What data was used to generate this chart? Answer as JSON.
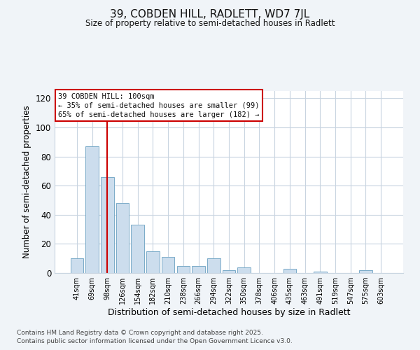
{
  "title": "39, COBDEN HILL, RADLETT, WD7 7JL",
  "subtitle": "Size of property relative to semi-detached houses in Radlett",
  "xlabel": "Distribution of semi-detached houses by size in Radlett",
  "ylabel": "Number of semi-detached properties",
  "bar_labels": [
    "41sqm",
    "69sqm",
    "98sqm",
    "126sqm",
    "154sqm",
    "182sqm",
    "210sqm",
    "238sqm",
    "266sqm",
    "294sqm",
    "322sqm",
    "350sqm",
    "378sqm",
    "406sqm",
    "435sqm",
    "463sqm",
    "491sqm",
    "519sqm",
    "547sqm",
    "575sqm",
    "603sqm"
  ],
  "bar_values": [
    10,
    87,
    66,
    48,
    33,
    15,
    11,
    5,
    5,
    10,
    2,
    4,
    0,
    0,
    3,
    0,
    1,
    0,
    0,
    2,
    0
  ],
  "bar_color": "#ccdded",
  "bar_edge_color": "#7aaac8",
  "vline_x": 2,
  "vline_color": "#cc0000",
  "ylim": [
    0,
    125
  ],
  "yticks": [
    0,
    20,
    40,
    60,
    80,
    100,
    120
  ],
  "annotation_title": "39 COBDEN HILL: 100sqm",
  "annotation_line1": "← 35% of semi-detached houses are smaller (99)",
  "annotation_line2": "65% of semi-detached houses are larger (182) →",
  "annotation_box_color": "#ffffff",
  "annotation_box_edge": "#cc0000",
  "footer_line1": "Contains HM Land Registry data © Crown copyright and database right 2025.",
  "footer_line2": "Contains public sector information licensed under the Open Government Licence v3.0.",
  "background_color": "#f0f4f8",
  "plot_bg_color": "#ffffff",
  "grid_color": "#c8d4e0"
}
